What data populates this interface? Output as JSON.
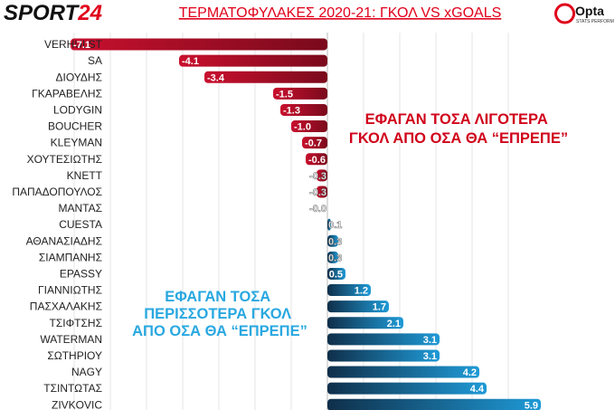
{
  "header": {
    "brand_left": "SPORT",
    "brand_left_num": "24",
    "title": "ΤΕΡΜΑΤΟΦΥΛΑΚΕΣ 2020-21: ΓΚΟΛ VS xGOALS",
    "brand_right": "Opta",
    "brand_right_sub": "STATS PERFORM"
  },
  "annotations": {
    "negative": [
      "ΕΦΑΓΑΝ ΤΟΣΑ ΛΙΓΟΤΕΡΑ",
      "ΓΚΟΛ ΑΠΟ ΟΣΑ ΘΑ “ΕΠΡΕΠΕ”"
    ],
    "positive": [
      "ΕΦΑΓΑΝ ΤΟΣΑ",
      "ΠΕΡΙΣΣΟΤΕΡΑ ΓΚΟΛ",
      "ΑΠΟ ΟΣΑ ΘΑ “ΕΠΡΕΠΕ”"
    ]
  },
  "colors": {
    "negative": "#c8102e",
    "negative_dark": "#7a0a1c",
    "positive": "#1f9ad6",
    "positive_dark": "#0f2f4a",
    "negative_note": "#d0021b",
    "positive_note": "#29a8e0",
    "title": "#e0001b"
  },
  "chart_data": {
    "type": "bar",
    "orientation": "horizontal",
    "categories": [
      "VERHULST",
      "SA",
      "ΔΙΟΥΔΗΣ",
      "ΓΚΑΡΑΒΕΛΗΣ",
      "LODYGIN",
      "BOUCHER",
      "KLEYMAN",
      "ΧΟΥΤΕΣΙΩΤΗΣ",
      "KNETT",
      "ΠΑΠΑΔΟΠΟΥΛΟΣ",
      "ΜΑΝΤΑΣ",
      "CUESTA",
      "ΑΘΑΝΑΣΙΑΔΗΣ",
      "ΣΙΑΜΠΑΝΗΣ",
      "EPASSY",
      "ΓΙΑΝΝΙΩΤΗΣ",
      "ΠΑΣΧΑΛΑΚΗΣ",
      "ΤΣΙΦΤΣΗΣ",
      "WATERMAN",
      "ΣΩΤΗΡΙΟΥ",
      "NAGY",
      "ΤΣΙΝΤΩΤΑΣ",
      "ZIVKOVIC"
    ],
    "values": [
      -7.1,
      -4.1,
      -3.4,
      -1.5,
      -1.3,
      -1.0,
      -0.7,
      -0.6,
      -0.3,
      -0.3,
      -0.0,
      0.1,
      0.3,
      0.3,
      0.5,
      1.2,
      1.7,
      2.1,
      3.1,
      3.1,
      4.2,
      4.4,
      5.9
    ],
    "labels": [
      "-7.1",
      "-4.1",
      "-3.4",
      "-1.5",
      "-1.3",
      "-1.0",
      "-0.7",
      "-0.6",
      "-0.3",
      "-0.3",
      "-0.0",
      "0.1",
      "0.3",
      "0.3",
      "0.5",
      "1.2",
      "1.7",
      "2.1",
      "3.1",
      "3.1",
      "4.2",
      "4.4",
      "5.9"
    ],
    "title": "ΤΕΡΜΑΤΟΦΥΛΑΚΕΣ 2020-21: ΓΚΟΛ VS xGOALS",
    "xlim": [
      -7.1,
      5.9
    ],
    "grid": true,
    "legend": "none"
  }
}
